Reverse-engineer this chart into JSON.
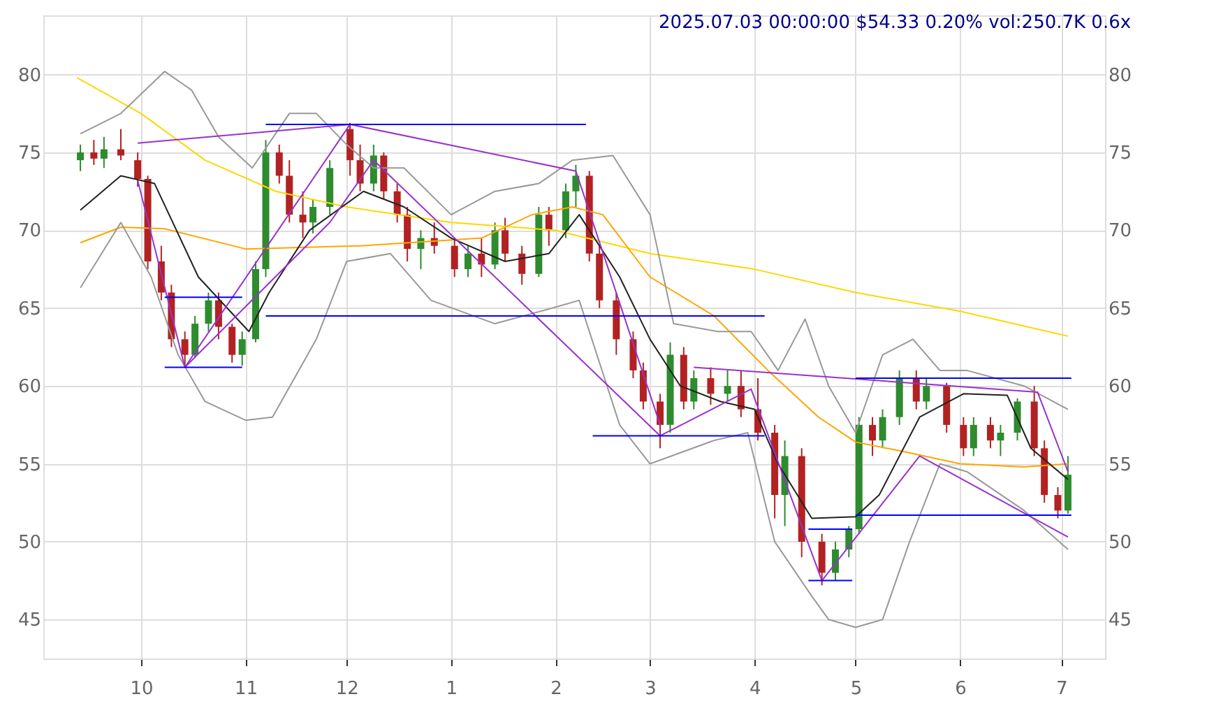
{
  "chart_data": {
    "type": "candlestick",
    "title": "2025.07.03 00:00:00 $54.33 0.20% vol:250.7K 0.6x",
    "x": [
      "2024-09-13",
      "2024-09-17",
      "2024-09-20",
      "2024-09-25",
      "2024-09-30",
      "2024-10-03",
      "2024-10-07",
      "2024-10-10",
      "2024-10-14",
      "2024-10-17",
      "2024-10-21",
      "2024-10-24",
      "2024-10-28",
      "2024-10-31",
      "2024-11-04",
      "2024-11-07",
      "2024-11-11",
      "2024-11-14",
      "2024-11-18",
      "2024-11-21",
      "2024-11-26",
      "2024-12-02",
      "2024-12-05",
      "2024-12-09",
      "2024-12-12",
      "2024-12-16",
      "2024-12-19",
      "2024-12-23",
      "2024-12-27",
      "2025-01-02",
      "2025-01-06",
      "2025-01-10",
      "2025-01-14",
      "2025-01-17",
      "2025-01-22",
      "2025-01-27",
      "2025-01-30",
      "2025-02-04",
      "2025-02-07",
      "2025-02-11",
      "2025-02-14",
      "2025-02-19",
      "2025-02-24",
      "2025-02-27",
      "2025-03-04",
      "2025-03-07",
      "2025-03-11",
      "2025-03-14",
      "2025-03-19",
      "2025-03-24",
      "2025-03-28",
      "2025-04-02",
      "2025-04-07",
      "2025-04-10",
      "2025-04-15",
      "2025-04-21",
      "2025-04-25",
      "2025-04-29",
      "2025-05-02",
      "2025-05-06",
      "2025-05-09",
      "2025-05-14",
      "2025-05-19",
      "2025-05-22",
      "2025-05-28",
      "2025-06-02",
      "2025-06-05",
      "2025-06-10",
      "2025-06-13",
      "2025-06-18",
      "2025-06-23",
      "2025-06-26",
      "2025-06-30",
      "2025-07-03"
    ],
    "ohlc": [
      [
        74.5,
        75.5,
        73.8,
        75.0
      ],
      [
        75.0,
        75.8,
        74.2,
        74.6
      ],
      [
        74.6,
        76.0,
        74.0,
        75.2
      ],
      [
        75.2,
        76.5,
        74.5,
        74.8
      ],
      [
        74.5,
        75.0,
        72.8,
        73.3
      ],
      [
        73.3,
        73.5,
        67.5,
        68.0
      ],
      [
        68.0,
        69.0,
        65.5,
        66.0
      ],
      [
        66.0,
        66.5,
        62.5,
        63.0
      ],
      [
        63.0,
        63.5,
        61.2,
        62.0
      ],
      [
        62.0,
        64.5,
        61.8,
        64.0
      ],
      [
        64.0,
        66.0,
        63.5,
        65.5
      ],
      [
        65.5,
        66.0,
        63.0,
        63.8
      ],
      [
        63.8,
        64.0,
        61.5,
        62.0
      ],
      [
        62.0,
        63.5,
        61.3,
        63.0
      ],
      [
        63.0,
        68.0,
        62.8,
        67.5
      ],
      [
        67.5,
        75.8,
        67.0,
        75.0
      ],
      [
        75.0,
        75.5,
        73.0,
        73.5
      ],
      [
        73.5,
        74.5,
        70.5,
        71.0
      ],
      [
        71.0,
        72.5,
        69.5,
        70.5
      ],
      [
        70.5,
        72.0,
        69.8,
        71.5
      ],
      [
        71.5,
        74.5,
        71.0,
        74.0
      ],
      [
        76.5,
        76.9,
        73.5,
        74.5
      ],
      [
        74.5,
        75.5,
        72.5,
        73.0
      ],
      [
        73.0,
        75.5,
        72.5,
        74.8
      ],
      [
        74.8,
        75.0,
        72.0,
        72.5
      ],
      [
        72.5,
        73.0,
        70.5,
        71.0
      ],
      [
        71.0,
        71.5,
        68.0,
        68.8
      ],
      [
        68.8,
        70.0,
        67.5,
        69.5
      ],
      [
        69.5,
        70.5,
        68.5,
        69.0
      ],
      [
        69.0,
        69.5,
        67.0,
        67.5
      ],
      [
        67.5,
        69.0,
        67.0,
        68.5
      ],
      [
        68.5,
        69.5,
        67.0,
        67.8
      ],
      [
        67.8,
        70.5,
        67.5,
        70.0
      ],
      [
        70.0,
        70.8,
        68.0,
        68.5
      ],
      [
        68.5,
        69.0,
        66.5,
        67.2
      ],
      [
        67.2,
        71.5,
        67.0,
        71.0
      ],
      [
        71.0,
        71.5,
        69.0,
        70.0
      ],
      [
        70.0,
        73.0,
        69.5,
        72.5
      ],
      [
        72.5,
        74.2,
        71.5,
        73.5
      ],
      [
        73.5,
        73.8,
        68.0,
        68.5
      ],
      [
        68.5,
        69.0,
        65.0,
        65.5
      ],
      [
        65.5,
        66.0,
        62.0,
        63.0
      ],
      [
        63.0,
        63.5,
        60.5,
        61.0
      ],
      [
        61.0,
        61.5,
        58.5,
        59.0
      ],
      [
        59.0,
        59.5,
        56.0,
        57.5
      ],
      [
        57.5,
        62.8,
        57.0,
        62.0
      ],
      [
        62.0,
        62.5,
        58.5,
        59.0
      ],
      [
        59.0,
        61.0,
        58.5,
        60.5
      ],
      [
        60.5,
        61.2,
        58.8,
        59.5
      ],
      [
        59.5,
        61.0,
        59.0,
        60.0
      ],
      [
        60.0,
        61.0,
        58.0,
        58.5
      ],
      [
        58.5,
        60.5,
        56.5,
        57.0
      ],
      [
        57.0,
        57.5,
        51.5,
        53.0
      ],
      [
        53.0,
        56.5,
        51.0,
        55.5
      ],
      [
        55.5,
        56.0,
        49.0,
        50.0
      ],
      [
        50.0,
        50.5,
        47.2,
        48.0
      ],
      [
        48.0,
        50.0,
        47.5,
        49.5
      ],
      [
        49.5,
        51.0,
        49.0,
        50.8
      ],
      [
        50.8,
        58.0,
        50.5,
        57.5
      ],
      [
        57.5,
        58.0,
        55.5,
        56.5
      ],
      [
        56.5,
        58.5,
        56.0,
        58.0
      ],
      [
        58.0,
        61.0,
        57.5,
        60.5
      ],
      [
        60.5,
        61.0,
        58.5,
        59.0
      ],
      [
        59.0,
        60.5,
        58.5,
        60.0
      ],
      [
        60.0,
        60.2,
        57.0,
        57.5
      ],
      [
        57.5,
        58.0,
        55.5,
        56.0
      ],
      [
        56.0,
        58.0,
        55.5,
        57.5
      ],
      [
        57.5,
        58.0,
        56.0,
        56.5
      ],
      [
        56.5,
        57.5,
        55.5,
        57.0
      ],
      [
        57.0,
        59.2,
        56.5,
        59.0
      ],
      [
        59.0,
        60.0,
        55.5,
        56.0
      ],
      [
        56.0,
        56.5,
        52.5,
        53.0
      ],
      [
        53.0,
        53.5,
        51.5,
        52.0
      ],
      [
        52.0,
        55.5,
        51.8,
        54.3
      ]
    ],
    "colors": [
      "#2e8b2e",
      "#b22222",
      "#2e8b2e",
      "#b22222",
      "#b22222",
      "#b22222",
      "#b22222",
      "#b22222",
      "#b22222",
      "#2e8b2e",
      "#2e8b2e",
      "#b22222",
      "#b22222",
      "#2e8b2e",
      "#2e8b2e",
      "#2e8b2e",
      "#b22222",
      "#b22222",
      "#b22222",
      "#2e8b2e",
      "#2e8b2e",
      "#b22222",
      "#b22222",
      "#2e8b2e",
      "#b22222",
      "#b22222",
      "#b22222",
      "#2e8b2e",
      "#b22222",
      "#b22222",
      "#2e8b2e",
      "#b22222",
      "#2e8b2e",
      "#b22222",
      "#b22222",
      "#2e8b2e",
      "#b22222",
      "#2e8b2e",
      "#2e8b2e",
      "#b22222",
      "#b22222",
      "#b22222",
      "#b22222",
      "#b22222",
      "#b22222",
      "#2e8b2e",
      "#b22222",
      "#2e8b2e",
      "#b22222",
      "#2e8b2e",
      "#b22222",
      "#b22222",
      "#b22222",
      "#2e8b2e",
      "#b22222",
      "#b22222",
      "#2e8b2e",
      "#2e8b2e",
      "#2e8b2e",
      "#b22222",
      "#2e8b2e",
      "#2e8b2e",
      "#b22222",
      "#2e8b2e",
      "#b22222",
      "#b22222",
      "#2e8b2e",
      "#b22222",
      "#2e8b2e",
      "#2e8b2e",
      "#b22222",
      "#b22222",
      "#b22222",
      "#2e8b2e"
    ],
    "series": [
      {
        "type": "line",
        "color": "#ffd700",
        "x": [
          "2024-09-12",
          "2024-10-01",
          "2024-10-20",
          "2024-11-10",
          "2024-12-01",
          "2025-01-01",
          "2025-02-01",
          "2025-03-01",
          "2025-04-01",
          "2025-05-01",
          "2025-06-01",
          "2025-07-03"
        ],
        "values": [
          79.8,
          77.5,
          74.5,
          72.5,
          71.5,
          70.5,
          70.0,
          68.5,
          67.5,
          66.0,
          64.8,
          63.2
        ]
      },
      {
        "type": "line",
        "color": "#ffa500",
        "x": [
          "2024-09-13",
          "2024-09-25",
          "2024-10-08",
          "2024-11-01",
          "2024-12-05",
          "2025-01-10",
          "2025-01-25",
          "2025-02-06",
          "2025-02-15",
          "2025-03-01",
          "2025-03-20",
          "2025-04-05",
          "2025-04-20",
          "2025-05-01",
          "2025-05-15",
          "2025-06-01",
          "2025-06-20",
          "2025-07-03"
        ],
        "values": [
          69.2,
          70.2,
          70.1,
          68.8,
          69.0,
          69.5,
          71.0,
          71.5,
          71.0,
          67.0,
          64.5,
          61.0,
          58.0,
          56.4,
          55.8,
          55.0,
          54.8,
          55.0
        ]
      },
      {
        "type": "line",
        "color": "#222222",
        "x": [
          "2024-09-13",
          "2024-09-25",
          "2024-10-05",
          "2024-10-18",
          "2024-11-02",
          "2024-11-08",
          "2024-11-20",
          "2024-12-06",
          "2024-12-18",
          "2025-01-01",
          "2025-01-17",
          "2025-01-30",
          "2025-02-08",
          "2025-02-20",
          "2025-03-01",
          "2025-03-10",
          "2025-03-22",
          "2025-04-01",
          "2025-04-08",
          "2025-04-18",
          "2025-05-01",
          "2025-05-08",
          "2025-05-20",
          "2025-06-02",
          "2025-06-15",
          "2025-06-22",
          "2025-07-03"
        ],
        "values": [
          71.3,
          73.5,
          73.0,
          67.0,
          63.5,
          66.0,
          70.0,
          72.5,
          71.5,
          69.5,
          68.0,
          68.5,
          71.0,
          67.0,
          63.0,
          60.0,
          59.0,
          58.5,
          55.0,
          51.5,
          51.6,
          53.0,
          58.0,
          59.5,
          59.4,
          56.0,
          54.0
        ]
      },
      {
        "type": "line",
        "color": "#999999",
        "x": [
          "2024-09-13",
          "2024-09-25",
          "2024-10-08",
          "2024-10-16",
          "2024-10-24",
          "2024-11-03",
          "2024-11-14",
          "2024-11-22",
          "2024-12-01",
          "2024-12-09",
          "2024-12-18",
          "2025-01-01",
          "2025-01-14",
          "2025-01-27",
          "2025-02-06",
          "2025-02-18",
          "2025-03-01",
          "2025-03-08",
          "2025-03-21",
          "2025-03-31",
          "2025-04-08",
          "2025-04-16",
          "2025-04-23",
          "2025-05-01",
          "2025-05-09",
          "2025-05-18",
          "2025-05-26",
          "2025-06-03",
          "2025-06-20",
          "2025-07-03"
        ],
        "values": [
          76.2,
          77.5,
          80.2,
          79.0,
          76.0,
          74.0,
          77.5,
          77.5,
          75.5,
          74.0,
          74.0,
          71.0,
          72.5,
          73.0,
          74.5,
          74.8,
          71.0,
          64.0,
          63.5,
          63.5,
          61.0,
          64.3,
          60.0,
          57.0,
          62.0,
          63.0,
          61.0,
          61.0,
          60.0,
          58.5
        ]
      },
      {
        "type": "line",
        "color": "#999999",
        "x": [
          "2024-09-13",
          "2024-09-25",
          "2024-10-04",
          "2024-10-12",
          "2024-10-20",
          "2024-11-01",
          "2024-11-09",
          "2024-11-22",
          "2024-12-01",
          "2024-12-14",
          "2024-12-26",
          "2025-01-14",
          "2025-01-31",
          "2025-02-08",
          "2025-02-20",
          "2025-03-01",
          "2025-03-20",
          "2025-03-30",
          "2025-04-07",
          "2025-04-18",
          "2025-04-23",
          "2025-05-01",
          "2025-05-09",
          "2025-05-17",
          "2025-05-26",
          "2025-06-03",
          "2025-06-20",
          "2025-07-03"
        ],
        "values": [
          66.3,
          70.5,
          67.0,
          62.0,
          59.0,
          57.8,
          58.0,
          63.0,
          68.0,
          68.5,
          65.5,
          64.0,
          65.0,
          65.5,
          57.5,
          55.0,
          56.5,
          57.0,
          50.0,
          46.5,
          45.0,
          44.5,
          45.0,
          50.0,
          55.0,
          54.5,
          52.0,
          49.5
        ]
      },
      {
        "type": "line",
        "color": "#9932cc",
        "x": [
          "2024-09-30",
          "2024-12-02"
        ],
        "values": [
          75.6,
          76.8
        ]
      },
      {
        "type": "line",
        "color": "#9932cc",
        "x": [
          "2024-09-30",
          "2024-10-14",
          "2024-12-02",
          "2025-02-07",
          "2025-03-04"
        ],
        "values": [
          73.2,
          61.2,
          76.8,
          73.8,
          57.5
        ]
      },
      {
        "type": "line",
        "color": "#9932cc",
        "x": [
          "2024-10-14",
          "2024-11-26",
          "2024-12-09",
          "2025-03-04",
          "2025-03-31",
          "2025-04-21",
          "2025-05-20",
          "2025-07-03"
        ],
        "values": [
          61.2,
          70.5,
          74.5,
          56.8,
          59.8,
          47.5,
          55.5,
          50.3
        ]
      },
      {
        "type": "line",
        "color": "#9932cc",
        "x": [
          "2025-03-14",
          "2025-06-24",
          "2025-07-03"
        ],
        "values": [
          61.2,
          59.6,
          54.5
        ]
      },
      {
        "type": "line",
        "color": "#0000ff",
        "x": [
          "2024-11-07",
          "2025-02-10"
        ],
        "values": [
          76.8,
          76.8
        ]
      },
      {
        "type": "line",
        "color": "#0000ff",
        "x": [
          "2024-11-07",
          "2025-04-04"
        ],
        "values": [
          64.5,
          64.5
        ]
      },
      {
        "type": "line",
        "color": "#0000ff",
        "x": [
          "2024-10-08",
          "2024-10-31"
        ],
        "values": [
          65.7,
          65.7
        ]
      },
      {
        "type": "line",
        "color": "#0000ff",
        "x": [
          "2024-10-08",
          "2024-10-31"
        ],
        "values": [
          61.2,
          61.2
        ]
      },
      {
        "type": "line",
        "color": "#0000ff",
        "x": [
          "2025-02-12",
          "2025-04-04"
        ],
        "values": [
          56.8,
          56.8
        ]
      },
      {
        "type": "line",
        "color": "#0000ff",
        "x": [
          "2025-04-17",
          "2025-04-30"
        ],
        "values": [
          50.8,
          50.8
        ]
      },
      {
        "type": "line",
        "color": "#0000ff",
        "x": [
          "2025-04-17",
          "2025-04-30"
        ],
        "values": [
          47.5,
          47.5
        ]
      },
      {
        "type": "line",
        "color": "#0000ff",
        "x": [
          "2025-05-01",
          "2025-07-04"
        ],
        "values": [
          60.5,
          60.5
        ]
      },
      {
        "type": "line",
        "color": "#0000ff",
        "x": [
          "2025-05-01",
          "2025-07-04"
        ],
        "values": [
          51.7,
          51.7
        ]
      }
    ],
    "xlim": [
      "2024-09-02",
      "2025-07-14"
    ],
    "xticks": [
      {
        "value": "2024-10-01",
        "label": "10"
      },
      {
        "value": "2024-11-01",
        "label": "11"
      },
      {
        "value": "2024-12-01",
        "label": "12"
      },
      {
        "value": "2025-01-01",
        "label": "1"
      },
      {
        "value": "2025-02-01",
        "label": "2"
      },
      {
        "value": "2025-03-01",
        "label": "3"
      },
      {
        "value": "2025-04-01",
        "label": "4"
      },
      {
        "value": "2025-05-01",
        "label": "5"
      },
      {
        "value": "2025-06-01",
        "label": "6"
      },
      {
        "value": "2025-07-01",
        "label": "7"
      }
    ],
    "ylim": [
      42.5,
      83.8
    ],
    "yticks": [
      45,
      50,
      55,
      60,
      65,
      70,
      75,
      80
    ],
    "y2lim": [
      42.5,
      83.8
    ],
    "y2ticks": [
      45,
      50,
      55,
      60,
      65,
      70,
      75,
      80
    ],
    "grid": true
  }
}
